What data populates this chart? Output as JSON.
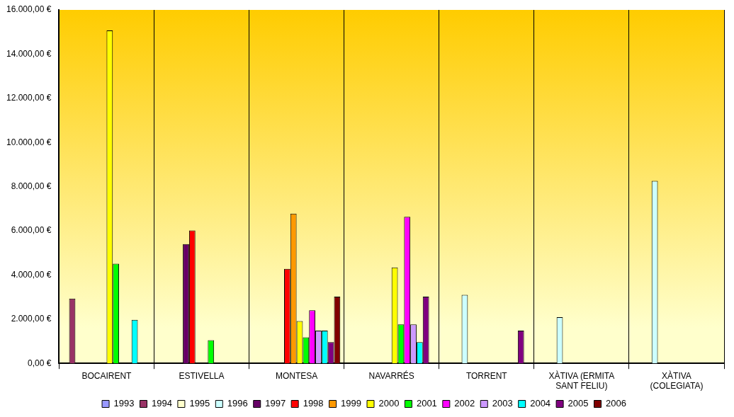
{
  "chart_data": {
    "type": "bar",
    "categories": [
      "BOCAIRENT",
      "ESTIVELLA",
      "MONTESA",
      "NAVARRÉS",
      "TORRENT",
      "XÀTIVA (ERMITA SANT FELIU)",
      "XÀTIVA (COLEGIATA)"
    ],
    "series": [
      {
        "name": "1993",
        "color": "#9999ff",
        "values": [
          null,
          null,
          null,
          null,
          null,
          null,
          null
        ]
      },
      {
        "name": "1994",
        "color": "#993366",
        "values": [
          2930,
          null,
          null,
          null,
          null,
          null,
          null
        ]
      },
      {
        "name": "1995",
        "color": "#ffffcc",
        "values": [
          null,
          null,
          null,
          null,
          null,
          null,
          null
        ]
      },
      {
        "name": "1996",
        "color": "#ccffff",
        "values": [
          null,
          null,
          null,
          null,
          3100,
          2090,
          8260
        ]
      },
      {
        "name": "1997",
        "color": "#660066",
        "values": [
          null,
          5400,
          null,
          null,
          null,
          null,
          null
        ]
      },
      {
        "name": "1998",
        "color": "#ff0000",
        "values": [
          null,
          6020,
          4280,
          null,
          null,
          null,
          null
        ]
      },
      {
        "name": "1999",
        "color": "#ff9900",
        "values": [
          null,
          null,
          6780,
          0,
          null,
          null,
          null
        ]
      },
      {
        "name": "2000",
        "color": "#ffff00",
        "values": [
          15070,
          null,
          1910,
          4340,
          null,
          null,
          null
        ]
      },
      {
        "name": "2001",
        "color": "#00ff00",
        "values": [
          4510,
          1050,
          1180,
          1760,
          null,
          null,
          null
        ]
      },
      {
        "name": "2002",
        "color": "#ff00ff",
        "values": [
          null,
          null,
          2400,
          6630,
          null,
          null,
          null
        ]
      },
      {
        "name": "2003",
        "color": "#cc99ff",
        "values": [
          null,
          null,
          1480,
          1760,
          null,
          null,
          null
        ]
      },
      {
        "name": "2004",
        "color": "#00ffff",
        "values": [
          1970,
          null,
          1480,
          960,
          null,
          null,
          null
        ]
      },
      {
        "name": "2005",
        "color": "#800080",
        "values": [
          null,
          null,
          960,
          3020,
          1480,
          null,
          null
        ]
      },
      {
        "name": "2006",
        "color": "#800000",
        "values": [
          null,
          null,
          3020,
          0,
          null,
          null,
          null
        ]
      }
    ],
    "ylim": [
      0,
      16000
    ],
    "yticks": [
      {
        "value": 0,
        "label": "0,00 €"
      },
      {
        "value": 2000,
        "label": "2.000,00 €"
      },
      {
        "value": 4000,
        "label": "4.000,00 €"
      },
      {
        "value": 6000,
        "label": "6.000,00 €"
      },
      {
        "value": 8000,
        "label": "8.000,00 €"
      },
      {
        "value": 10000,
        "label": "10.000,00 €"
      },
      {
        "value": 12000,
        "label": "12.000,00 €"
      },
      {
        "value": 14000,
        "label": "14.000,00 €"
      },
      {
        "value": 16000,
        "label": "16.000,00 €"
      }
    ],
    "grid": "x",
    "legend": "bottom"
  }
}
